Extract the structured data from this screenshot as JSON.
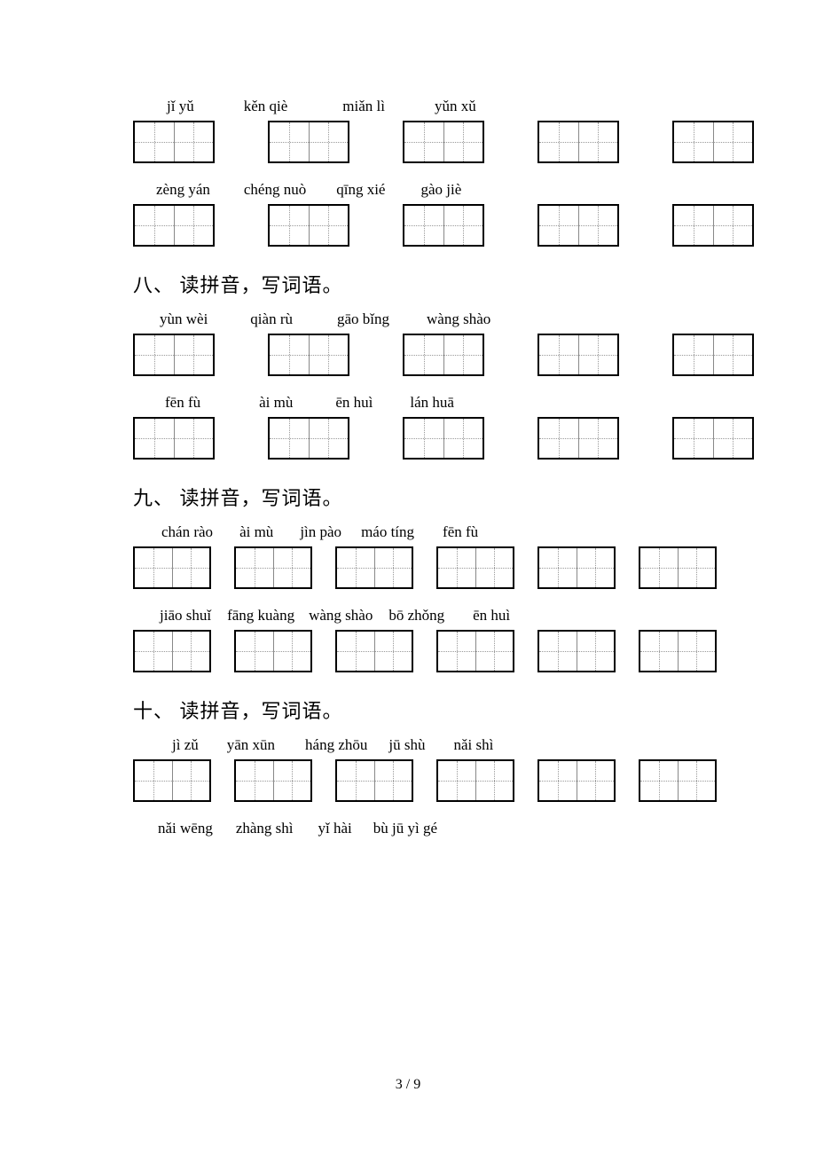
{
  "page_number": "3 / 9",
  "sections": [
    {
      "title": null,
      "groups": [
        {
          "pinyin": [
            "jǐ yǔ",
            "kěn qiè",
            "miǎn lì",
            "yǔn xǔ"
          ],
          "pinyin_offsets": [
            22,
            56,
            62,
            56
          ],
          "boxes_count": 5,
          "box_gaps": [
            60,
            60,
            60,
            60
          ]
        },
        {
          "pinyin": [
            "zèng yán",
            "chéng nuò",
            "qīng xié",
            "gào jiè"
          ],
          "pinyin_offsets": [
            10,
            38,
            34,
            40
          ],
          "boxes_count": 5,
          "box_gaps": [
            60,
            60,
            60,
            60
          ]
        }
      ]
    },
    {
      "title": "八、 读拼音，写词语。",
      "groups": [
        {
          "pinyin": [
            "yùn wèi",
            "qiàn rù",
            "gāo bǐng",
            "wàng shào"
          ],
          "pinyin_offsets": [
            14,
            48,
            50,
            42
          ],
          "boxes_count": 5,
          "box_gaps": [
            60,
            60,
            60,
            60
          ]
        },
        {
          "pinyin": [
            "fēn fù",
            "ài mù",
            "ēn huì",
            "lán huā"
          ],
          "pinyin_offsets": [
            20,
            66,
            48,
            42
          ],
          "boxes_count": 5,
          "box_gaps": [
            60,
            60,
            60,
            60
          ]
        }
      ]
    },
    {
      "title": "九、 读拼音，写词语。",
      "klass": "s9",
      "groups": [
        {
          "pinyin": [
            "chán rào",
            "ài mù",
            "jìn pào",
            "máo tíng",
            "fēn fù"
          ],
          "pinyin_offsets": [
            16,
            30,
            30,
            22,
            32
          ],
          "boxes_count": 6,
          "box_gaps": [
            26,
            26,
            26,
            26,
            26
          ]
        },
        {
          "pinyin": [
            "jiāo shuǐ",
            "fāng kuàng",
            "wàng shào",
            "bō zhǒng",
            "ēn huì"
          ],
          "pinyin_offsets": [
            14,
            18,
            16,
            18,
            32
          ],
          "boxes_count": 6,
          "box_gaps": [
            26,
            26,
            26,
            26,
            26
          ]
        }
      ]
    },
    {
      "title": "十、 读拼音，写词语。",
      "klass": "s10",
      "groups": [
        {
          "pinyin": [
            "jì zǔ",
            "yān xūn",
            "háng zhōu",
            "jū shù",
            "nǎi shì"
          ],
          "pinyin_offsets": [
            28,
            32,
            34,
            24,
            32
          ],
          "boxes_count": 6,
          "box_gaps": [
            26,
            26,
            26,
            26,
            26
          ]
        },
        {
          "pinyin": [
            "nǎi wēng",
            "zhàng shì",
            "yǐ hài",
            "bù  jū  yì  gé"
          ],
          "pinyin_offsets": [
            12,
            26,
            28,
            24
          ],
          "boxes_count": 0,
          "box_gaps": []
        }
      ]
    }
  ]
}
